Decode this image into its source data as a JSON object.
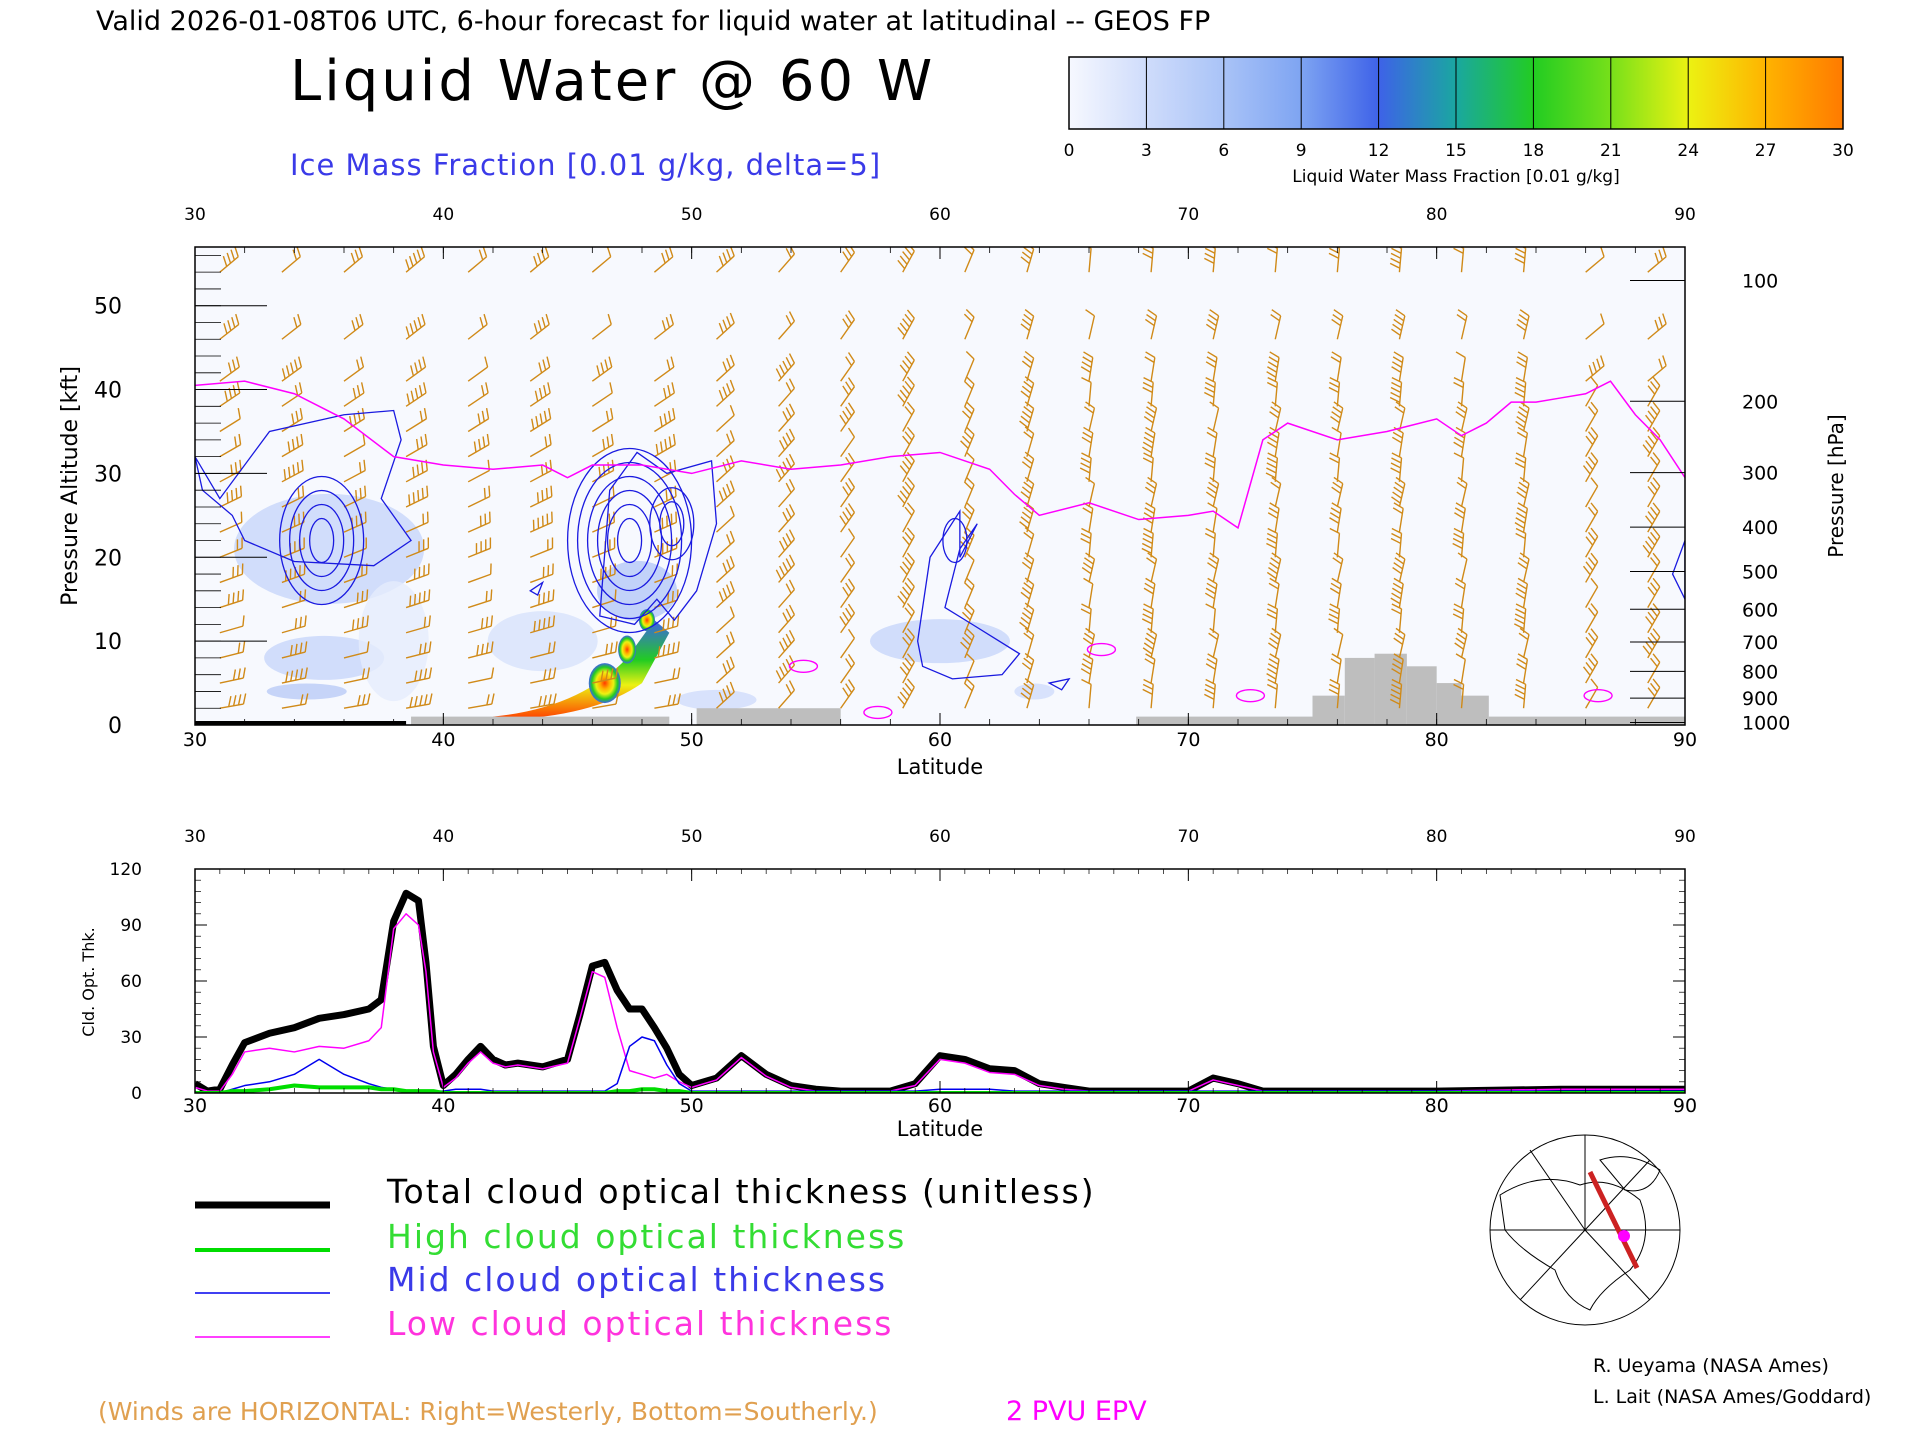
{
  "header": {
    "valid_line": "Valid 2026-01-08T06 UTC, 6-hour forecast for liquid water at latitudinal -- GEOS FP",
    "main_title": "Liquid Water @ 60 W",
    "ice_label": "Ice Mass Fraction [0.01 g/kg, delta=5]"
  },
  "colorbar": {
    "ticks": [
      "0",
      "3",
      "6",
      "9",
      "12",
      "15",
      "18",
      "21",
      "24",
      "27",
      "30"
    ],
    "label": "Liquid Water Mass Fraction [0.01 g/kg]",
    "colors": [
      "#f6f8ff",
      "#cfdcfb",
      "#a9c3f7",
      "#7ea4f2",
      "#3e62e8",
      "#1aa7a0",
      "#22cc22",
      "#77e01a",
      "#ecf212",
      "#ffb300",
      "#ff7a00",
      "#ff3a00"
    ]
  },
  "legend": {
    "total": "Total cloud optical thickness (unitless)",
    "high": "High cloud optical thickness",
    "mid": "Mid cloud optical thickness",
    "low": "Low cloud optical thickness",
    "winds_note": "(Winds are HORIZONTAL: Right=Westerly, Bottom=Southerly.)",
    "epv": "2 PVU EPV"
  },
  "credits": {
    "line1": "R. Ueyama (NASA Ames)",
    "line2": "L. Lait (NASA Ames/Goddard)"
  },
  "chart_data": [
    {
      "type": "area",
      "name": "cross-section",
      "xlabel": "Latitude",
      "ylabel": "Pressure Altitude [kft]",
      "ylabel_right": "Pressure [hPa]",
      "xlim": [
        30,
        90
      ],
      "ylim": [
        0,
        57
      ],
      "x_ticks": [
        "30",
        "40",
        "50",
        "60",
        "70",
        "80",
        "90"
      ],
      "y_ticks": [
        "0",
        "10",
        "20",
        "30",
        "40",
        "50"
      ],
      "pressure_ticks": [
        {
          "label": "100",
          "kft": 53
        },
        {
          "label": "200",
          "kft": 38.6
        },
        {
          "label": "300",
          "kft": 30.1
        },
        {
          "label": "400",
          "kft": 23.6
        },
        {
          "label": "500",
          "kft": 18.3
        },
        {
          "label": "600",
          "kft": 13.8
        },
        {
          "label": "700",
          "kft": 9.9
        },
        {
          "label": "800",
          "kft": 6.4
        },
        {
          "label": "900",
          "kft": 3.2
        },
        {
          "label": "1000",
          "kft": 0.3
        }
      ],
      "epv_2pvu": {
        "color": "#ff00ff",
        "lat": [
          30,
          32,
          34,
          36,
          38,
          40,
          42,
          44,
          45,
          46,
          48,
          50,
          52,
          54,
          56,
          58,
          60,
          62,
          63,
          64,
          66,
          68,
          70,
          71,
          72,
          73,
          74,
          76,
          78,
          80,
          81,
          82,
          83,
          84,
          85,
          86,
          87,
          88,
          89,
          90
        ],
        "kft": [
          40.5,
          41,
          39.5,
          36.5,
          32,
          31,
          30.5,
          31,
          29.5,
          31,
          31,
          30,
          31.5,
          30.5,
          31,
          32,
          32.5,
          30.5,
          27.5,
          25,
          26.5,
          24.5,
          25,
          25.5,
          23.5,
          34,
          36,
          34,
          35,
          36.5,
          34.5,
          36,
          38.5,
          38.5,
          39,
          39.5,
          41,
          37,
          34,
          29.5
        ]
      },
      "ice_contours": [
        {
          "center_lat": 35.1,
          "center_kft": 22,
          "rings": 4
        },
        {
          "center_lat": 47.5,
          "center_kft": 22,
          "rings": 6
        },
        {
          "center_lat": 49.2,
          "center_kft": 24,
          "rings": 2
        },
        {
          "center_lat": 60.6,
          "center_kft": 22,
          "rings": 1
        }
      ],
      "liquid_water_peak": {
        "lat": 46.5,
        "kft": 5,
        "value": 30
      },
      "terrain": [
        {
          "lat0": 38.7,
          "lat1": 49.1,
          "kft": 1
        },
        {
          "lat0": 50.2,
          "lat1": 56,
          "kft": 2
        },
        {
          "lat0": 67.9,
          "lat1": 75,
          "kft": 1
        },
        {
          "lat0": 75,
          "lat1": 76.3,
          "kft": 3.5
        },
        {
          "lat0": 76.3,
          "lat1": 77.5,
          "kft": 8
        },
        {
          "lat0": 77.5,
          "lat1": 78.8,
          "kft": 8.5
        },
        {
          "lat0": 78.8,
          "lat1": 80,
          "kft": 7
        },
        {
          "lat0": 80,
          "lat1": 81,
          "kft": 5
        },
        {
          "lat0": 81,
          "lat1": 82.1,
          "kft": 3.5
        },
        {
          "lat0": 82.1,
          "lat1": 90,
          "kft": 1
        }
      ]
    },
    {
      "type": "line",
      "name": "cloud-optical-thickness",
      "xlabel": "Latitude",
      "ylabel": "Cld. Opt. Thk.",
      "xlim": [
        30,
        90
      ],
      "ylim": [
        0,
        120
      ],
      "x_ticks": [
        "30",
        "40",
        "50",
        "60",
        "70",
        "80",
        "90"
      ],
      "y_ticks": [
        "0",
        "30",
        "60",
        "90",
        "120"
      ],
      "x": [
        30,
        30.5,
        31,
        31.5,
        32,
        33,
        34,
        35,
        36,
        37,
        37.5,
        38,
        38.5,
        39,
        39.3,
        39.6,
        40,
        40.5,
        41,
        41.5,
        42,
        42.5,
        43,
        44,
        45,
        45.5,
        46,
        46.5,
        47,
        47.5,
        48,
        48.5,
        49,
        49.5,
        50,
        51,
        52,
        53,
        54,
        55,
        56,
        58,
        59,
        60,
        61,
        62,
        63,
        64,
        65,
        66,
        68,
        70,
        71,
        72,
        73,
        75,
        80,
        85,
        90
      ],
      "series": [
        {
          "name": "Total cloud optical thickness (unitless)",
          "color": "#000000",
          "width": 7,
          "values": [
            5,
            1,
            2,
            15,
            27,
            32,
            35,
            40,
            42,
            45,
            50,
            92,
            107,
            103,
            70,
            25,
            4,
            10,
            18,
            25,
            18,
            15,
            16,
            14,
            18,
            42,
            68,
            70,
            55,
            45,
            45,
            35,
            24,
            10,
            4,
            8,
            20,
            10,
            4,
            2,
            1,
            1,
            5,
            20,
            18,
            13,
            12,
            5,
            3,
            1,
            1,
            1,
            8,
            5,
            1,
            1,
            1,
            2,
            2
          ]
        },
        {
          "name": "High cloud optical thickness",
          "color": "#00dd00",
          "width": 4,
          "values": [
            0,
            0,
            0,
            1,
            1,
            2,
            4,
            3,
            3,
            3,
            2,
            2,
            1,
            1,
            1,
            1,
            0,
            0,
            0,
            0,
            0,
            0,
            0,
            0,
            0,
            0,
            0,
            0,
            1,
            1,
            2,
            2,
            1,
            1,
            0,
            0,
            0,
            0,
            0,
            0,
            0,
            0,
            0,
            0,
            0,
            0,
            0,
            0,
            0,
            0,
            0,
            0,
            0,
            0,
            0,
            0,
            0,
            0,
            0
          ]
        },
        {
          "name": "Mid cloud optical thickness",
          "color": "#0000ee",
          "width": 1.5,
          "values": [
            0,
            0,
            0,
            2,
            4,
            6,
            10,
            18,
            10,
            5,
            3,
            2,
            1,
            1,
            1,
            1,
            1,
            2,
            2,
            2,
            1,
            1,
            1,
            1,
            1,
            1,
            1,
            1,
            5,
            25,
            30,
            28,
            15,
            5,
            1,
            1,
            1,
            1,
            1,
            1,
            1,
            1,
            1,
            2,
            2,
            2,
            1,
            1,
            1,
            1,
            1,
            1,
            1,
            1,
            1,
            1,
            1,
            1,
            1
          ]
        },
        {
          "name": "Low cloud optical thickness",
          "color": "#ff00ff",
          "width": 1.5,
          "values": [
            3,
            1,
            1,
            10,
            22,
            24,
            22,
            25,
            24,
            28,
            35,
            88,
            96,
            90,
            65,
            22,
            3,
            8,
            16,
            22,
            16,
            14,
            15,
            13,
            16,
            40,
            65,
            62,
            35,
            12,
            10,
            8,
            10,
            6,
            3,
            7,
            19,
            9,
            3,
            1,
            1,
            1,
            4,
            18,
            16,
            11,
            10,
            4,
            2,
            1,
            1,
            1,
            7,
            4,
            1,
            1,
            1,
            2,
            2
          ]
        }
      ]
    }
  ]
}
